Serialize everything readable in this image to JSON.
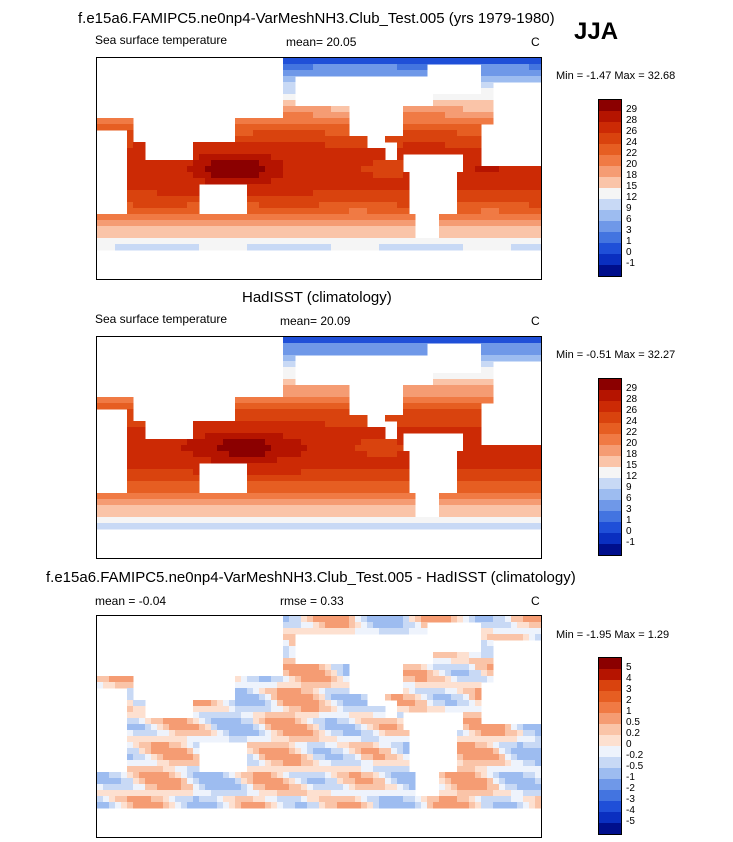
{
  "season": "JJA",
  "panels": [
    {
      "title": "f.e15a6.FAMIPC5.ne0np4-VarMeshNH3.Club_Test.005 (yrs 1979-1980)",
      "variable": "Sea surface temperature",
      "stat1": "mean=  20.05",
      "units": "C",
      "minmax": "Min =  -1.47 Max =  32.68"
    },
    {
      "title": "HadISST (climatology)",
      "variable": "Sea surface temperature",
      "stat1": "mean=  20.09",
      "units": "C",
      "minmax": "Min =  -0.51 Max =  32.27"
    },
    {
      "title": "f.e15a6.FAMIPC5.ne0np4-VarMeshNH3.Club_Test.005 - HadISST (climatology)",
      "stat1": "mean =  -0.04",
      "stat2": "rmse =  0.33",
      "units": "C",
      "minmax": "Min =  -1.95 Max =   1.29"
    }
  ],
  "chart_data": [
    {
      "type": "heatmap",
      "title": "f.e15a6.FAMIPC5.ne0np4-VarMeshNH3.Club_Test.005 (yrs 1979-1980)",
      "variable": "Sea surface temperature",
      "units": "C",
      "mean": 20.05,
      "min": -1.47,
      "max": 32.68,
      "colorbar": {
        "levels": [
          "29",
          "28",
          "26",
          "24",
          "22",
          "20",
          "18",
          "15",
          "12",
          "9",
          "6",
          "3",
          "1",
          "0",
          "-1"
        ],
        "colors": [
          "#8b0000",
          "#b51400",
          "#cc2a05",
          "#d9430e",
          "#e65e22",
          "#f07a44",
          "#f59c73",
          "#fac4a8",
          "#f5f5f5",
          "#c8d9f5",
          "#9dbcf0",
          "#6f98e8",
          "#4374e0",
          "#1f4fd8",
          "#0a2fc0",
          "#000f8c"
        ]
      },
      "field": "model"
    },
    {
      "type": "heatmap",
      "title": "HadISST (climatology)",
      "variable": "Sea surface temperature",
      "units": "C",
      "mean": 20.09,
      "min": -0.51,
      "max": 32.27,
      "colorbar": {
        "levels": [
          "29",
          "28",
          "26",
          "24",
          "22",
          "20",
          "18",
          "15",
          "12",
          "9",
          "6",
          "3",
          "1",
          "0",
          "-1"
        ],
        "colors": [
          "#8b0000",
          "#b51400",
          "#cc2a05",
          "#d9430e",
          "#e65e22",
          "#f07a44",
          "#f59c73",
          "#fac4a8",
          "#f5f5f5",
          "#c8d9f5",
          "#9dbcf0",
          "#6f98e8",
          "#4374e0",
          "#1f4fd8",
          "#0a2fc0",
          "#000f8c"
        ]
      },
      "field": "obs"
    },
    {
      "type": "heatmap",
      "title": "f.e15a6.FAMIPC5.ne0np4-VarMeshNH3.Club_Test.005 - HadISST (climatology)",
      "units": "C",
      "mean": -0.04,
      "rmse": 0.33,
      "min": -1.95,
      "max": 1.29,
      "colorbar": {
        "levels": [
          "5",
          "4",
          "3",
          "2",
          "1",
          "0.5",
          "0.2",
          "0",
          "-0.2",
          "-0.5",
          "-1",
          "-2",
          "-3",
          "-4",
          "-5"
        ],
        "colors": [
          "#8b0000",
          "#b51400",
          "#d9430e",
          "#e65e22",
          "#f07a44",
          "#f59c73",
          "#fac4a8",
          "#fde0d0",
          "#eef3fc",
          "#c8d9f5",
          "#9dbcf0",
          "#6f98e8",
          "#4374e0",
          "#1f4fd8",
          "#0a2fc0",
          "#000f8c"
        ]
      },
      "field": "diff"
    }
  ]
}
